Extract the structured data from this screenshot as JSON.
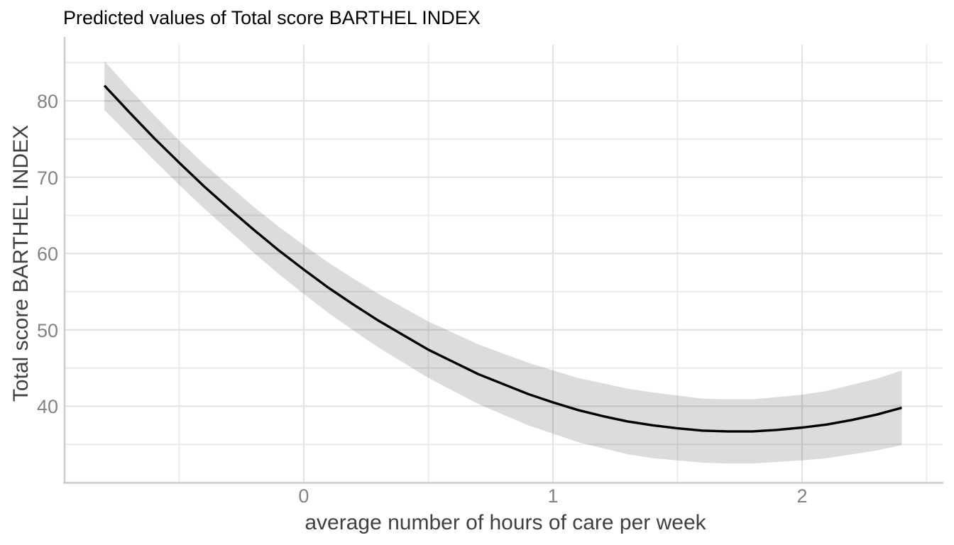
{
  "chart_data": {
    "type": "line",
    "subtype": "regression-prediction-with-confidence-ribbon",
    "title": "Predicted values of Total score BARTHEL INDEX",
    "xlabel": "average number of hours of care per week",
    "ylabel": "Total score BARTHEL INDEX",
    "legend": false,
    "grid": true,
    "xlim": [
      -0.957,
      2.564
    ],
    "ylim": [
      30,
      87.35
    ],
    "x_ticks": [
      0,
      1,
      2
    ],
    "y_ticks": [
      40,
      50,
      60,
      70,
      80
    ],
    "x_minor_ticks": [
      -0.5,
      0.5,
      1.5,
      2.5
    ],
    "y_minor_ticks": [
      35,
      45,
      55,
      65,
      75,
      85
    ],
    "series": [
      {
        "name": "predicted",
        "x": [
          -0.8,
          -0.7,
          -0.6,
          -0.5,
          -0.4,
          -0.3,
          -0.2,
          -0.1,
          0,
          0.1,
          0.2,
          0.3,
          0.4,
          0.5,
          0.6,
          0.7,
          0.8,
          0.9,
          1,
          1.1,
          1.2,
          1.3,
          1.4,
          1.5,
          1.6,
          1.7,
          1.8,
          1.9,
          2,
          2.1,
          2.2,
          2.3,
          2.4
        ],
        "y": [
          82.0,
          78.5,
          75.1,
          71.9,
          68.8,
          65.9,
          63.1,
          60.4,
          57.9,
          55.5,
          53.3,
          51.2,
          49.3,
          47.4,
          45.8,
          44.2,
          42.9,
          41.6,
          40.5,
          39.5,
          38.7,
          38.0,
          37.5,
          37.1,
          36.8,
          36.7,
          36.7,
          36.9,
          37.2,
          37.6,
          38.2,
          38.9,
          39.8
        ],
        "conf_low": [
          78.8,
          75.5,
          72.2,
          69.0,
          65.9,
          63.0,
          60.1,
          57.3,
          54.7,
          52.2,
          49.9,
          47.7,
          45.7,
          43.7,
          42.0,
          40.3,
          38.9,
          37.5,
          36.4,
          35.3,
          34.5,
          33.7,
          33.2,
          32.9,
          32.6,
          32.5,
          32.5,
          32.7,
          32.9,
          33.2,
          33.7,
          34.2,
          34.9
        ],
        "conf_high": [
          85.2,
          81.6,
          78.1,
          74.8,
          71.7,
          68.9,
          66.1,
          63.5,
          61.1,
          58.8,
          56.7,
          54.7,
          52.9,
          51.1,
          49.6,
          48.1,
          46.9,
          45.7,
          44.7,
          43.7,
          43.0,
          42.3,
          41.8,
          41.4,
          41.0,
          40.9,
          40.9,
          41.2,
          41.5,
          42.0,
          42.8,
          43.6,
          44.7
        ]
      }
    ]
  },
  "colors": {
    "line": "#000000",
    "ribbon": "rgba(0,0,0,0.137)",
    "grid_major": "#e3e3e3",
    "grid_minor": "#ebebeb",
    "axis_line": "#cbcbcb",
    "tick_label": "#838383",
    "axis_title": "#404040",
    "title": "#000000",
    "background": "#ffffff"
  }
}
